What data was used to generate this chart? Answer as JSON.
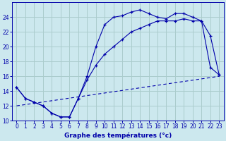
{
  "xlabel": "Graphe des températures (°c)",
  "bg_color": "#cce8ee",
  "grid_color": "#aacccc",
  "line_color": "#0000aa",
  "xlim": [
    -0.5,
    23.5
  ],
  "ylim": [
    10,
    26
  ],
  "yticks": [
    10,
    12,
    14,
    16,
    18,
    20,
    22,
    24
  ],
  "xticks": [
    0,
    1,
    2,
    3,
    4,
    5,
    6,
    7,
    8,
    9,
    10,
    11,
    12,
    13,
    14,
    15,
    16,
    17,
    18,
    19,
    20,
    21,
    22,
    23
  ],
  "curve1_x": [
    0,
    1,
    2,
    3,
    4,
    5,
    6,
    7,
    8,
    9,
    10,
    11,
    12,
    13,
    14,
    15,
    16,
    17,
    18,
    19,
    20,
    21,
    22,
    23
  ],
  "curve1_y": [
    14.5,
    13.0,
    12.5,
    12.0,
    11.0,
    10.5,
    10.5,
    13.0,
    16.0,
    20.0,
    23.0,
    24.0,
    24.2,
    24.7,
    25.0,
    24.5,
    24.0,
    23.8,
    24.5,
    24.5,
    24.0,
    23.5,
    21.5,
    16.2
  ],
  "curve2_x": [
    0,
    1,
    2,
    3,
    4,
    5,
    6,
    7,
    8,
    9,
    10,
    11,
    12,
    13,
    14,
    15,
    16,
    17,
    18,
    19,
    20,
    21,
    22,
    23
  ],
  "curve2_y": [
    14.5,
    13.0,
    12.5,
    12.0,
    11.0,
    10.5,
    10.5,
    13.0,
    15.5,
    17.5,
    19.0,
    20.0,
    21.0,
    22.0,
    22.5,
    23.0,
    23.5,
    23.5,
    23.5,
    23.8,
    23.5,
    23.5,
    17.2,
    16.2
  ],
  "curve3_x": [
    0,
    23
  ],
  "curve3_y": [
    12.0,
    16.0
  ]
}
